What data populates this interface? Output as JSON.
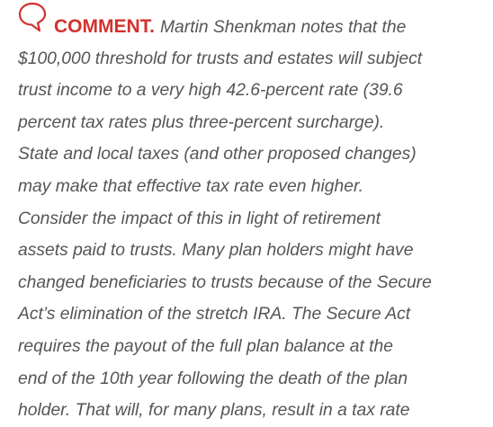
{
  "comment": {
    "label": "COMMENT.",
    "lines": [
      "Martin Shenkman notes that the",
      "$100,000 threshold for trusts and estates will subject",
      "trust income to a very high 42.6-percent rate (39.6",
      "percent tax rates plus three-percent surcharge).",
      "State and local taxes (and other proposed changes)",
      "may make that effective tax rate even higher.",
      "Consider the impact of this in light of retirement",
      "assets paid to trusts. Many plan holders might have",
      "changed beneficiaries to trusts because of the Secure",
      "Act’s elimination of the stretch IRA. The Secure Act",
      "requires the payout of the full plan balance at the",
      "end of the 10th year following the death of the plan",
      "holder. That will, for many plans, result in a tax rate"
    ]
  }
}
